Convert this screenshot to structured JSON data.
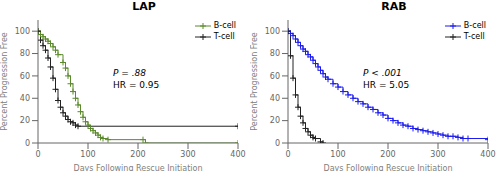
{
  "chart_data": [
    {
      "type": "step",
      "title": "LAP",
      "x_label": "Days Following Rescue Initiation",
      "y_label": "Percent Progression Free",
      "xlim": [
        0,
        400
      ],
      "ylim": [
        0,
        110
      ],
      "xticks": [
        0,
        100,
        200,
        300,
        400
      ],
      "yticks": [
        0,
        20,
        40,
        60,
        80,
        100
      ],
      "grid": false,
      "legend": "upper right",
      "annotations": [
        "P = .88",
        "HR = 0.95"
      ],
      "series": [
        {
          "name": "B-cell",
          "color": "#5a8a2a",
          "marker": "plus",
          "x": [
            0,
            5,
            10,
            15,
            20,
            25,
            30,
            35,
            40,
            50,
            55,
            60,
            65,
            70,
            75,
            80,
            85,
            90,
            95,
            100,
            105,
            110,
            115,
            120,
            125,
            130,
            140,
            210,
            215,
            400
          ],
          "values": [
            100,
            97,
            95,
            93,
            91,
            89,
            86,
            83,
            79,
            72,
            67,
            60,
            53,
            46,
            40,
            34,
            28,
            23,
            19,
            16,
            13,
            11,
            9,
            7,
            5,
            4,
            3,
            3,
            0,
            0
          ]
        },
        {
          "name": "T-cell",
          "color": "#222222",
          "marker": "plus",
          "x": [
            0,
            5,
            10,
            15,
            20,
            25,
            30,
            35,
            40,
            45,
            50,
            55,
            60,
            65,
            70,
            75,
            80,
            400
          ],
          "values": [
            100,
            92,
            87,
            83,
            76,
            68,
            58,
            48,
            38,
            32,
            27,
            24,
            21,
            19,
            18,
            16,
            15,
            15
          ]
        }
      ]
    },
    {
      "type": "step",
      "title": "RAB",
      "x_label": "Days Following Rescue Initiation",
      "y_label": "Percent Progression Free",
      "xlim": [
        0,
        400
      ],
      "ylim": [
        0,
        110
      ],
      "xticks": [
        0,
        100,
        200,
        300,
        400
      ],
      "yticks": [
        0,
        20,
        40,
        60,
        80,
        100
      ],
      "grid": false,
      "legend": "upper right",
      "annotations": [
        "P < .001",
        "HR = 5.05"
      ],
      "series": [
        {
          "name": "B-cell",
          "color": "#1a1aee",
          "marker": "plus",
          "x": [
            0,
            5,
            10,
            15,
            20,
            25,
            30,
            35,
            40,
            45,
            50,
            55,
            60,
            65,
            70,
            75,
            80,
            90,
            100,
            110,
            120,
            130,
            140,
            150,
            160,
            170,
            180,
            190,
            200,
            210,
            220,
            230,
            240,
            250,
            260,
            270,
            280,
            290,
            300,
            310,
            320,
            330,
            340,
            350,
            360,
            400
          ],
          "values": [
            100,
            98,
            96,
            93,
            90,
            87,
            84,
            82,
            79,
            77,
            74,
            71,
            68,
            65,
            62,
            59,
            57,
            53,
            50,
            46,
            43,
            40,
            37,
            35,
            32,
            30,
            27,
            25,
            22,
            20,
            18,
            16,
            15,
            13,
            12,
            11,
            10,
            9,
            8,
            7,
            6,
            6,
            5,
            4,
            4,
            3
          ]
        },
        {
          "name": "T-cell",
          "color": "#222222",
          "marker": "plus",
          "x": [
            0,
            5,
            10,
            15,
            20,
            25,
            30,
            35,
            40,
            45,
            50,
            55,
            65,
            70
          ],
          "values": [
            100,
            78,
            58,
            43,
            32,
            24,
            18,
            13,
            10,
            7,
            5,
            4,
            1,
            0
          ]
        }
      ]
    }
  ]
}
